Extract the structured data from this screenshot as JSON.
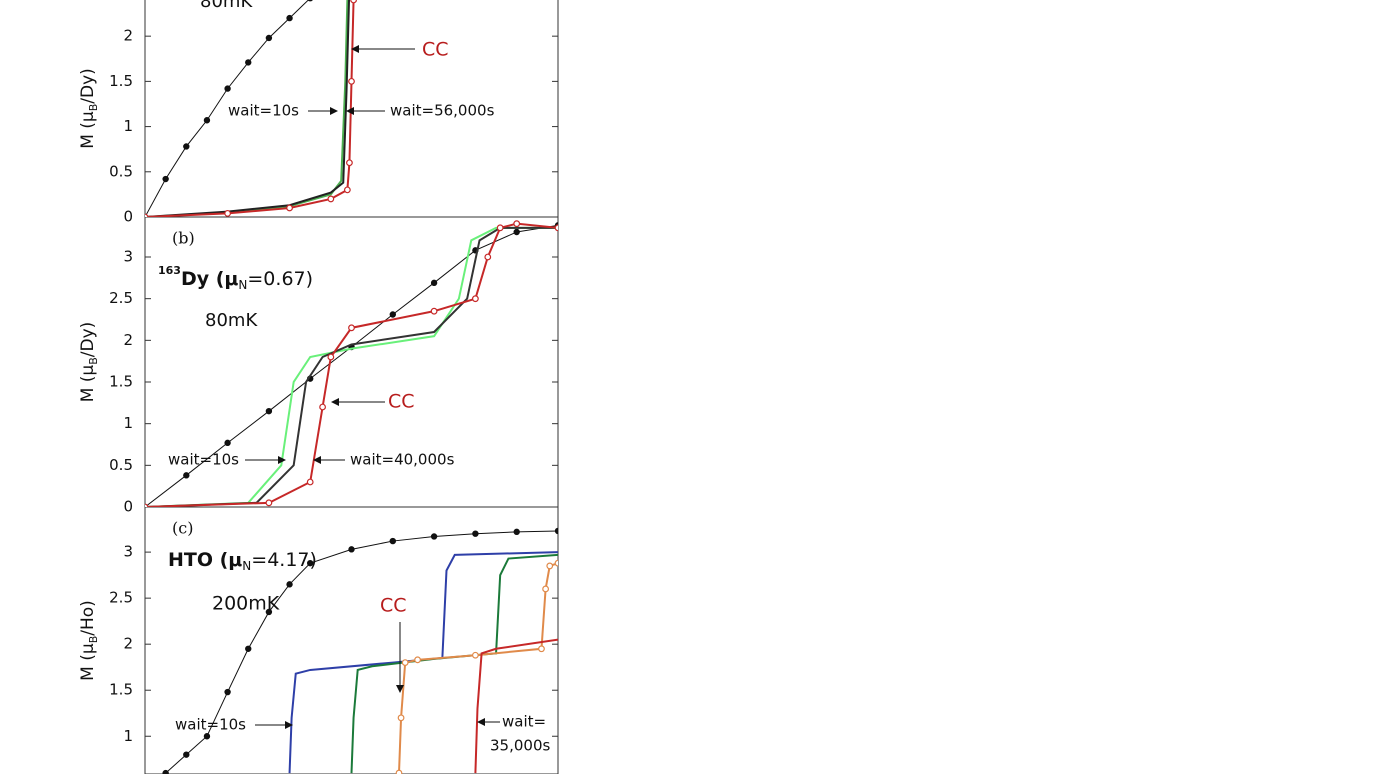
{
  "chart_data": [
    {
      "type": "line",
      "ylabel": {
        "text": "M (μ",
        "sub": "B",
        "after": "/Dy)"
      },
      "xlim": [
        0,
        1
      ],
      "ylim": [
        0,
        2.4
      ],
      "yticks": [
        0,
        0.5,
        1,
        1.5,
        2
      ],
      "annotations": [
        "80mK",
        "wait=10s",
        "wait=56,000s",
        "CC"
      ],
      "series": [
        {
          "color": "#111111",
          "marker": "dot",
          "x": [
            0,
            0.05,
            0.1,
            0.15,
            0.2,
            0.25,
            0.3,
            0.35,
            0.4
          ],
          "values": [
            0,
            0.42,
            0.78,
            1.07,
            1.42,
            1.71,
            1.98,
            2.2,
            2.42
          ]
        },
        {
          "color": "#4caf50",
          "marker": "none",
          "x": [
            0,
            0.2,
            0.35,
            0.45,
            0.475,
            0.485,
            0.49
          ],
          "values": [
            0,
            0.05,
            0.12,
            0.25,
            0.4,
            1.5,
            2.4
          ]
        },
        {
          "color": "#222222",
          "marker": "none",
          "x": [
            0,
            0.2,
            0.35,
            0.45,
            0.48,
            0.488,
            0.494
          ],
          "values": [
            0,
            0.06,
            0.13,
            0.27,
            0.38,
            1.4,
            2.4
          ]
        },
        {
          "color": "#c62828",
          "marker": "ring",
          "x": [
            0,
            0.2,
            0.35,
            0.45,
            0.49,
            0.495,
            0.5,
            0.505
          ],
          "values": [
            0,
            0.04,
            0.1,
            0.2,
            0.3,
            0.6,
            1.5,
            2.4
          ]
        }
      ]
    },
    {
      "type": "line",
      "panel_label": "(b)",
      "sample": {
        "sup": "163",
        "text": "Dy (μ",
        "sub": "N",
        "after": "=0.67)"
      },
      "ylabel": {
        "text": "M (μ",
        "sub": "B",
        "after": "/Dy)"
      },
      "xlim": [
        0,
        1
      ],
      "ylim": [
        0,
        3.48
      ],
      "yticks": [
        0,
        0.5,
        1,
        1.5,
        2,
        2.5,
        3
      ],
      "annotations": [
        "80mK",
        "wait=10s",
        "wait=40,000s",
        "CC"
      ],
      "series": [
        {
          "color": "#111111",
          "marker": "dot",
          "x": [
            0,
            0.1,
            0.2,
            0.3,
            0.4,
            0.5,
            0.6,
            0.7,
            0.8,
            0.9,
            1
          ],
          "values": [
            0,
            0.38,
            0.77,
            1.15,
            1.54,
            1.92,
            2.31,
            2.69,
            3.08,
            3.3,
            3.38
          ]
        },
        {
          "color": "#69f07a",
          "marker": "none",
          "x": [
            0,
            0.25,
            0.33,
            0.36,
            0.4,
            0.5,
            0.7,
            0.76,
            0.79,
            0.85,
            1
          ],
          "values": [
            0,
            0.05,
            0.5,
            1.5,
            1.8,
            1.9,
            2.05,
            2.5,
            3.2,
            3.35,
            3.35
          ]
        },
        {
          "color": "#333333",
          "marker": "none",
          "x": [
            0,
            0.27,
            0.36,
            0.39,
            0.43,
            0.5,
            0.7,
            0.78,
            0.81,
            0.86,
            1
          ],
          "values": [
            0,
            0.05,
            0.5,
            1.5,
            1.8,
            1.95,
            2.1,
            2.5,
            3.2,
            3.35,
            3.35
          ]
        },
        {
          "color": "#c62828",
          "marker": "ring",
          "x": [
            0,
            0.3,
            0.4,
            0.43,
            0.45,
            0.5,
            0.7,
            0.8,
            0.83,
            0.86,
            0.9,
            1
          ],
          "values": [
            0,
            0.05,
            0.3,
            1.2,
            1.8,
            2.15,
            2.35,
            2.5,
            3.0,
            3.35,
            3.4,
            3.35
          ]
        }
      ]
    },
    {
      "type": "line",
      "panel_label": "(c)",
      "sample": {
        "text": "HTO  (μ",
        "sub": "N",
        "after": "=4.17)"
      },
      "ylabel": {
        "text": "M (μ",
        "sub": "B",
        "after": "/Ho)"
      },
      "xlim": [
        0,
        1
      ],
      "ylim": [
        0.59,
        3.49
      ],
      "yticks": [
        1,
        1.5,
        2,
        2.5,
        3
      ],
      "annotations": [
        "200mK",
        "wait=10s",
        "wait=",
        "35,000s",
        "CC"
      ],
      "series": [
        {
          "color": "#111111",
          "marker": "dot",
          "x": [
            0.05,
            0.1,
            0.15,
            0.2,
            0.25,
            0.3,
            0.35,
            0.4,
            0.5,
            0.6,
            0.7,
            0.8,
            0.9,
            1
          ],
          "values": [
            0.6,
            0.8,
            1.0,
            1.48,
            1.95,
            2.35,
            2.65,
            2.88,
            3.03,
            3.12,
            3.17,
            3.2,
            3.22,
            3.23
          ]
        },
        {
          "color": "#2e3fa8",
          "marker": "none",
          "x": [
            0.35,
            0.355,
            0.365,
            0.4,
            0.6,
            0.72,
            0.73,
            0.75,
            1
          ],
          "values": [
            0.6,
            1.2,
            1.68,
            1.72,
            1.8,
            1.85,
            2.8,
            2.97,
            3.0
          ]
        },
        {
          "color": "#1b7a3a",
          "marker": "none",
          "x": [
            0.5,
            0.505,
            0.515,
            0.55,
            0.7,
            0.85,
            0.86,
            0.88,
            1
          ],
          "values": [
            0.6,
            1.2,
            1.72,
            1.76,
            1.84,
            1.9,
            2.75,
            2.93,
            2.97
          ]
        },
        {
          "color": "#e08a4a",
          "marker": "ring",
          "x": [
            0.615,
            0.62,
            0.63,
            0.66,
            0.8,
            0.96,
            0.97,
            0.98,
            1
          ],
          "values": [
            0.6,
            1.2,
            1.8,
            1.83,
            1.88,
            1.95,
            2.6,
            2.85,
            2.88
          ]
        },
        {
          "color": "#c62828",
          "marker": "none",
          "x": [
            0.8,
            0.805,
            0.815,
            0.85,
            1
          ],
          "values": [
            0.6,
            1.3,
            1.9,
            1.95,
            2.05
          ]
        }
      ]
    }
  ]
}
